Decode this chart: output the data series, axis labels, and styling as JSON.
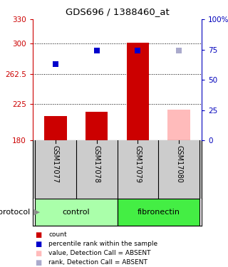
{
  "title": "GDS696 / 1388460_at",
  "samples": [
    "GSM17077",
    "GSM17078",
    "GSM17079",
    "GSM17080"
  ],
  "bar_values": [
    210,
    215,
    301,
    218
  ],
  "bar_colors": [
    "#cc0000",
    "#cc0000",
    "#cc0000",
    "#ffbbbb"
  ],
  "dot_values": [
    274,
    291,
    291,
    291
  ],
  "dot_colors": [
    "#0000cc",
    "#0000cc",
    "#0000cc",
    "#aaaacc"
  ],
  "ylim_left": [
    180,
    330
  ],
  "ylim_right": [
    0,
    100
  ],
  "yticks_left": [
    180,
    225,
    262.5,
    300,
    330
  ],
  "yticks_right": [
    0,
    25,
    50,
    75,
    100
  ],
  "ytick_labels_left": [
    "180",
    "225",
    "262.5",
    "300",
    "330"
  ],
  "ytick_labels_right": [
    "0",
    "25",
    "50",
    "75",
    "100%"
  ],
  "bar_bottom": 180,
  "groups": [
    {
      "label": "control",
      "samples": [
        0,
        1
      ],
      "color": "#aaffaa"
    },
    {
      "label": "fibronectin",
      "samples": [
        2,
        3
      ],
      "color": "#44ee44"
    }
  ],
  "legend_items": [
    {
      "label": "count",
      "color": "#cc0000"
    },
    {
      "label": "percentile rank within the sample",
      "color": "#0000cc"
    },
    {
      "label": "value, Detection Call = ABSENT",
      "color": "#ffbbbb"
    },
    {
      "label": "rank, Detection Call = ABSENT",
      "color": "#aaaacc"
    }
  ],
  "grid_yticks": [
    225,
    262.5,
    300
  ],
  "bar_width": 0.55,
  "dot_size": 30,
  "left_axis_color": "#cc0000",
  "right_axis_color": "#0000bb",
  "label_box_color": "#cccccc",
  "plot_xlim": [
    -0.55,
    3.55
  ]
}
